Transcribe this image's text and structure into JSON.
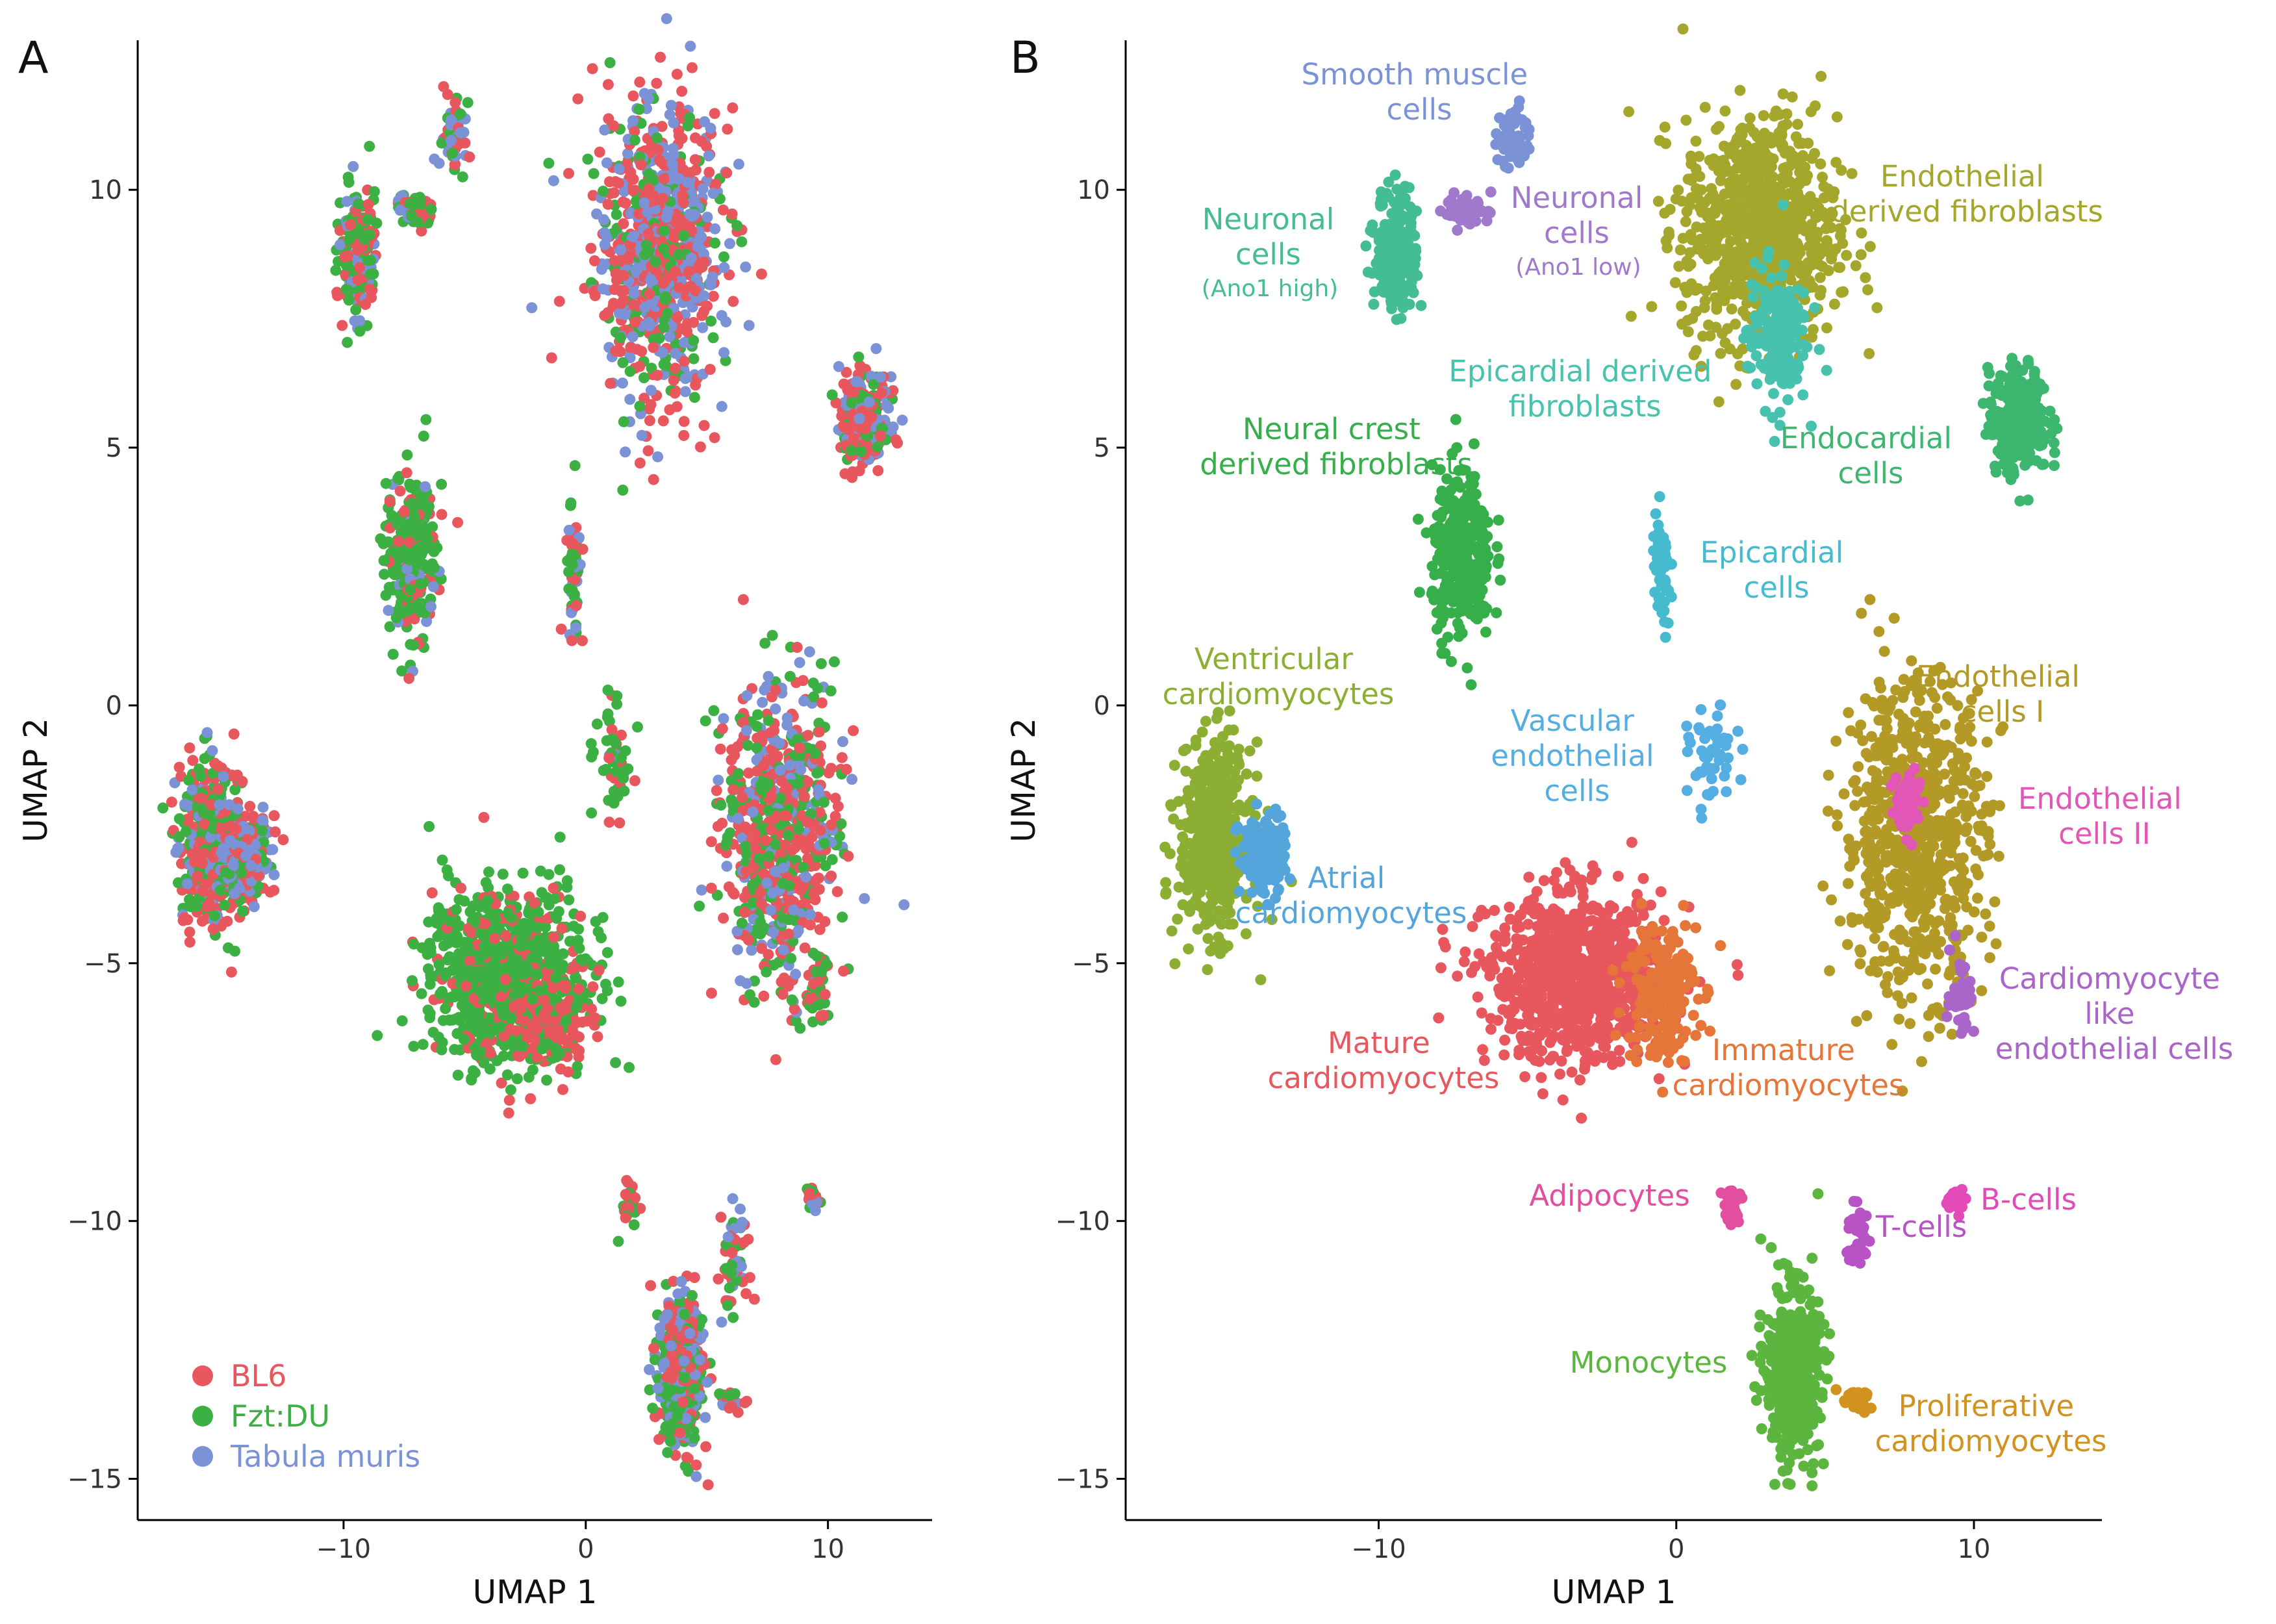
{
  "chart_data": [
    {
      "type": "scatter",
      "panel": "A",
      "xlabel": "UMAP 1",
      "ylabel": "UMAP 2",
      "xlim": [
        -18.5,
        14.3
      ],
      "ylim": [
        -15.8,
        12.9
      ],
      "xticks": [
        -10,
        0,
        10
      ],
      "yticks": [
        -15,
        -10,
        -5,
        0,
        5,
        10
      ],
      "grid": false,
      "legend_position": "bottom-left",
      "series": [
        {
          "name": "BL6",
          "color": "#E8575D"
        },
        {
          "name": "Fzt:DU",
          "color": "#3DB044"
        },
        {
          "name": "Tabula muris",
          "color": "#7B93D6"
        }
      ],
      "clusters": [
        {
          "x": 3.0,
          "y": 8.9,
          "sx": 1.3,
          "sy": 1.4,
          "n": 900,
          "mix": [
            0.45,
            0.2,
            0.35
          ]
        },
        {
          "x": -9.4,
          "y": 8.8,
          "sx": 0.35,
          "sy": 0.6,
          "n": 220,
          "mix": [
            0.3,
            0.6,
            0.1
          ]
        },
        {
          "x": -7.0,
          "y": 9.6,
          "sx": 0.4,
          "sy": 0.15,
          "n": 50,
          "mix": [
            0.4,
            0.5,
            0.1
          ]
        },
        {
          "x": -5.5,
          "y": 11.0,
          "sx": 0.25,
          "sy": 0.35,
          "n": 60,
          "mix": [
            0.3,
            0.3,
            0.4
          ]
        },
        {
          "x": 11.5,
          "y": 5.5,
          "sx": 0.5,
          "sy": 0.5,
          "n": 260,
          "mix": [
            0.55,
            0.2,
            0.25
          ]
        },
        {
          "x": -7.2,
          "y": 2.9,
          "sx": 0.5,
          "sy": 0.8,
          "n": 320,
          "mix": [
            0.15,
            0.75,
            0.1
          ]
        },
        {
          "x": -0.5,
          "y": 2.5,
          "sx": 0.15,
          "sy": 0.6,
          "n": 60,
          "mix": [
            0.3,
            0.5,
            0.2
          ]
        },
        {
          "x": -15.4,
          "y": -2.7,
          "sx": 0.7,
          "sy": 0.8,
          "n": 480,
          "mix": [
            0.45,
            0.35,
            0.2
          ]
        },
        {
          "x": -14.0,
          "y": -2.9,
          "sx": 0.5,
          "sy": 0.4,
          "n": 150,
          "mix": [
            0.35,
            0.2,
            0.45
          ]
        },
        {
          "x": 1.2,
          "y": -1.1,
          "sx": 0.4,
          "sy": 0.5,
          "n": 50,
          "mix": [
            0.35,
            0.55,
            0.1
          ]
        },
        {
          "x": 8.0,
          "y": -2.5,
          "sx": 1.2,
          "sy": 1.5,
          "n": 720,
          "mix": [
            0.45,
            0.3,
            0.25
          ]
        },
        {
          "x": 9.6,
          "y": -5.6,
          "sx": 0.2,
          "sy": 0.4,
          "n": 40,
          "mix": [
            0.5,
            0.5,
            0.0
          ]
        },
        {
          "x": -3.3,
          "y": -5.2,
          "sx": 1.6,
          "sy": 0.8,
          "n": 900,
          "mix": [
            0.2,
            0.8,
            0.0
          ]
        },
        {
          "x": -1.5,
          "y": -6.2,
          "sx": 0.9,
          "sy": 0.4,
          "n": 160,
          "mix": [
            0.7,
            0.3,
            0.0
          ]
        },
        {
          "x": 1.8,
          "y": -9.7,
          "sx": 0.2,
          "sy": 0.25,
          "n": 30,
          "mix": [
            0.4,
            0.6,
            0.0
          ]
        },
        {
          "x": 6.1,
          "y": -10.7,
          "sx": 0.3,
          "sy": 0.6,
          "n": 60,
          "mix": [
            0.4,
            0.3,
            0.3
          ]
        },
        {
          "x": 9.4,
          "y": -9.6,
          "sx": 0.15,
          "sy": 0.12,
          "n": 25,
          "mix": [
            0.4,
            0.2,
            0.4
          ]
        },
        {
          "x": 3.9,
          "y": -13.0,
          "sx": 0.45,
          "sy": 0.7,
          "n": 450,
          "mix": [
            0.3,
            0.35,
            0.35
          ]
        },
        {
          "x": 6.0,
          "y": -13.5,
          "sx": 0.3,
          "sy": 0.1,
          "n": 25,
          "mix": [
            0.4,
            0.3,
            0.3
          ]
        }
      ]
    },
    {
      "type": "scatter",
      "panel": "B",
      "xlabel": "UMAP 1",
      "ylabel": "UMAP 2",
      "xlim": [
        -18.5,
        14.3
      ],
      "ylim": [
        -15.8,
        12.9
      ],
      "xticks": [
        -10,
        0,
        10
      ],
      "yticks": [
        -15,
        -10,
        -5,
        0,
        5,
        10
      ],
      "grid": false,
      "clusters": [
        {
          "label": "Smooth muscle cells",
          "color": "#7B93D6",
          "x": -5.5,
          "y": 11.0,
          "sx": 0.25,
          "sy": 0.35,
          "n": 60
        },
        {
          "label": "Neuronal cells (Ano1 low)",
          "color": "#A079CC",
          "x": -7.0,
          "y": 9.6,
          "sx": 0.4,
          "sy": 0.15,
          "n": 50
        },
        {
          "label": "Neuronal cells (Ano1 high)",
          "color": "#44BD95",
          "x": -9.4,
          "y": 8.8,
          "sx": 0.35,
          "sy": 0.6,
          "n": 220
        },
        {
          "label": "Endothelial derived fibroblasts",
          "color": "#A4A72B",
          "x": 2.8,
          "y": 9.2,
          "sx": 1.3,
          "sy": 1.1,
          "n": 820
        },
        {
          "label": "Epicardial derived fibroblasts",
          "color": "#47C2AE",
          "x": 3.4,
          "y": 7.2,
          "sx": 0.5,
          "sy": 0.7,
          "n": 180
        },
        {
          "label": "Endocardial cells",
          "color": "#3DB66F",
          "x": 11.5,
          "y": 5.5,
          "sx": 0.5,
          "sy": 0.5,
          "n": 260
        },
        {
          "label": "Neural crest derived fibroblasts",
          "color": "#36AE4A",
          "x": -7.2,
          "y": 2.9,
          "sx": 0.5,
          "sy": 0.8,
          "n": 320
        },
        {
          "label": "Epicardial cells",
          "color": "#46BBCF",
          "x": -0.5,
          "y": 2.5,
          "sx": 0.15,
          "sy": 0.6,
          "n": 60
        },
        {
          "label": "Ventricular cardiomyocytes",
          "color": "#8CAF33",
          "x": -15.5,
          "y": -2.6,
          "sx": 0.6,
          "sy": 0.9,
          "n": 480
        },
        {
          "label": "Atrial cardiomyocytes",
          "color": "#55A5DC",
          "x": -13.9,
          "y": -2.9,
          "sx": 0.4,
          "sy": 0.4,
          "n": 130
        },
        {
          "label": "Vascular endothelial cells",
          "color": "#55AEE2",
          "x": 1.2,
          "y": -1.1,
          "sx": 0.4,
          "sy": 0.5,
          "n": 50
        },
        {
          "label": "Endothelial cells I",
          "color": "#B39926",
          "x": 8.0,
          "y": -2.5,
          "sx": 1.2,
          "sy": 1.5,
          "n": 720
        },
        {
          "label": "Endothelial cells II",
          "color": "#E256B5",
          "x": 7.8,
          "y": -1.9,
          "sx": 0.3,
          "sy": 0.4,
          "n": 50
        },
        {
          "label": "Cardiomyocyte like endothelial cells",
          "color": "#A965C8",
          "x": 9.6,
          "y": -5.6,
          "sx": 0.2,
          "sy": 0.4,
          "n": 40
        },
        {
          "label": "Mature cardiomyocytes",
          "color": "#E8575D",
          "x": -3.3,
          "y": -5.3,
          "sx": 1.5,
          "sy": 0.8,
          "n": 900
        },
        {
          "label": "Immature cardiomyocytes",
          "color": "#E57538",
          "x": -0.5,
          "y": -5.5,
          "sx": 0.6,
          "sy": 0.7,
          "n": 200
        },
        {
          "label": "Adipocytes",
          "color": "#E24F9E",
          "x": 1.8,
          "y": -9.7,
          "sx": 0.2,
          "sy": 0.25,
          "n": 30
        },
        {
          "label": "T-cells",
          "color": "#B853C6",
          "x": 6.1,
          "y": -10.3,
          "sx": 0.2,
          "sy": 0.3,
          "n": 40
        },
        {
          "label": "B-cells",
          "color": "#E24AB8",
          "x": 9.4,
          "y": -9.6,
          "sx": 0.15,
          "sy": 0.12,
          "n": 25
        },
        {
          "label": "Monocytes",
          "color": "#5BB53E",
          "x": 3.9,
          "y": -12.9,
          "sx": 0.45,
          "sy": 0.8,
          "n": 480
        },
        {
          "label": "Proliferative cardiomyocytes",
          "color": "#D1921E",
          "x": 6.0,
          "y": -13.5,
          "sx": 0.3,
          "sy": 0.1,
          "n": 25
        }
      ]
    }
  ],
  "figure": {
    "panel_a_letter": "A",
    "panel_b_letter": "B",
    "legend_a": [
      "BL6",
      "Fzt:DU",
      "Tabula muris"
    ]
  },
  "labels_b": {
    "smooth_muscle_1": "Smooth muscle",
    "smooth_muscle_2": "cells",
    "neuronal_high_1": "Neuronal",
    "neuronal_high_2": "cells",
    "neuronal_high_3": "(Ano1 high)",
    "neuronal_low_1": "Neuronal",
    "neuronal_low_2": "cells",
    "neuronal_low_3": "(Ano1 low)",
    "endo_fib_1": "Endothelial",
    "endo_fib_2": "derived fibroblasts",
    "epi_fib_1": "Epicardial derived",
    "epi_fib_2": "fibroblasts",
    "endocardial_1": "Endocardial",
    "endocardial_2": "cells",
    "neural_crest_1": "Neural crest",
    "neural_crest_2": "derived fibroblasts",
    "epicardial_1": "Epicardial",
    "epicardial_2": "cells",
    "ventricular_1": "Ventricular",
    "ventricular_2": "cardiomyocytes",
    "vascular_1": "Vascular",
    "vascular_2": "endothelial",
    "vascular_3": "cells",
    "endo1_1": "Endothelial",
    "endo1_2": "cells I",
    "endo2_1": "Endothelial",
    "endo2_2": "cells II",
    "atrial_1": "Atrial",
    "atrial_2": "cardiomyocytes",
    "cm_like_1": "Cardiomyocyte",
    "cm_like_2": "like",
    "cm_like_3": "endothelial cells",
    "mature_1": "Mature",
    "mature_2": "cardiomyocytes",
    "immature_1": "Immature",
    "immature_2": "cardiomyocytes",
    "adipocytes": "Adipocytes",
    "t_cells": "T-cells",
    "b_cells": "B-cells",
    "monocytes": "Monocytes",
    "prolif_1": "Proliferative",
    "prolif_2": "cardiomyocytes"
  }
}
